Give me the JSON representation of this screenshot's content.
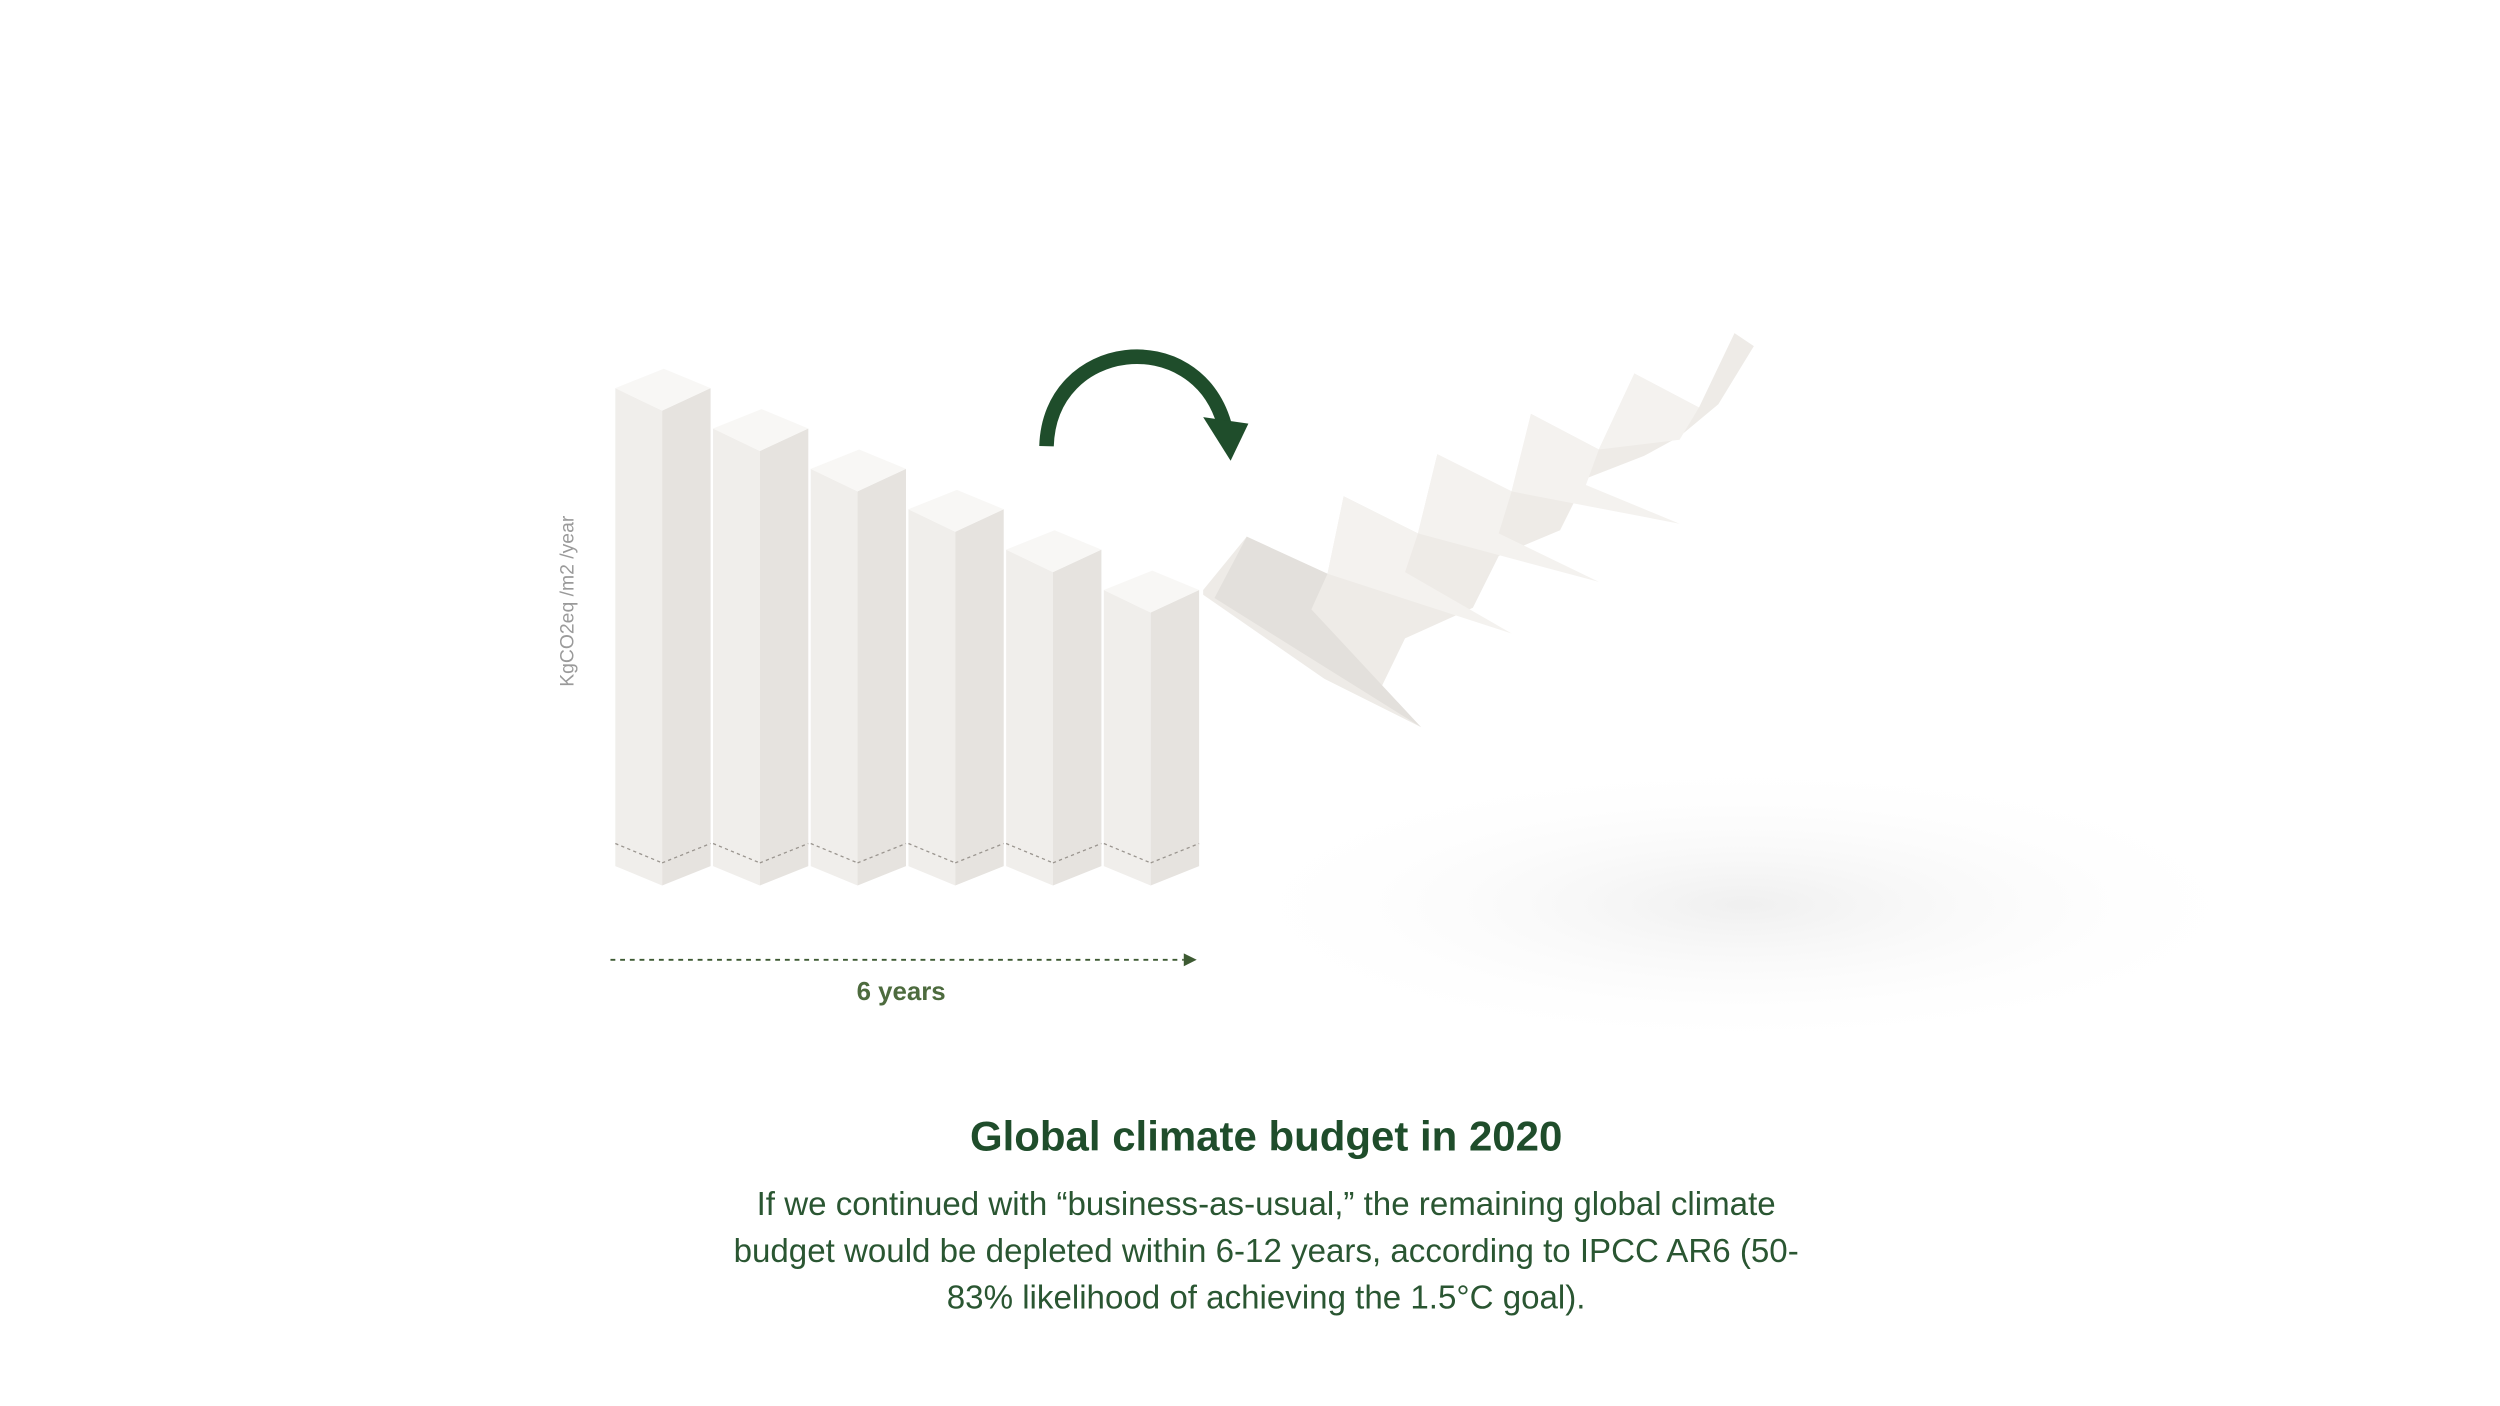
{
  "axis_label": "KgCO2eq /m2 /year",
  "duration_label": "6 years",
  "title": "Global climate budget in 2020",
  "description_lines": [
    "If we continued with “business-as-usual,” the remaining global climate",
    "budget would be depleted within 6-12 years, according to IPCC AR6 (50-",
    "83% likelihood of achieving the 1.5°C goal)."
  ]
}
